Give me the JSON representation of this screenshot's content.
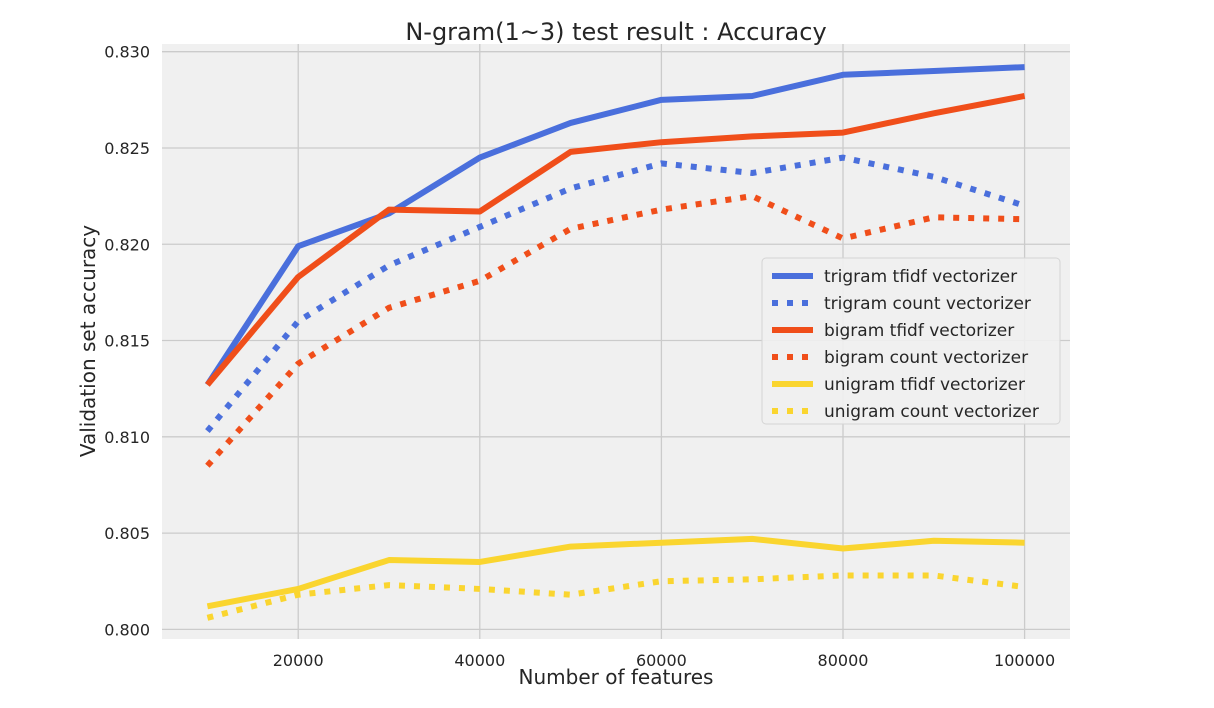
{
  "chart_data": {
    "type": "line",
    "title": "N-gram(1~3) test result : Accuracy",
    "xlabel": "Number of features",
    "ylabel": "Validation set accuracy",
    "x": [
      10000,
      20000,
      30000,
      40000,
      50000,
      60000,
      70000,
      80000,
      90000,
      100000
    ],
    "xlim": [
      5000,
      105000
    ],
    "ylim": [
      0.7995,
      0.8304
    ],
    "xticks": [
      20000,
      40000,
      60000,
      80000,
      100000
    ],
    "yticks": [
      0.8,
      0.805,
      0.81,
      0.815,
      0.82,
      0.825,
      0.83
    ],
    "xtick_labels": [
      "20000",
      "40000",
      "60000",
      "80000",
      "100000"
    ],
    "ytick_labels": [
      "0.800",
      "0.805",
      "0.810",
      "0.815",
      "0.820",
      "0.825",
      "0.830"
    ],
    "grid": true,
    "legend_position": "center-right",
    "series": [
      {
        "name": "trigram tfidf vectorizer",
        "color": "#4a6fdc",
        "linestyle": "solid",
        "values": [
          0.8127,
          0.8199,
          0.8216,
          0.8245,
          0.8263,
          0.8275,
          0.8277,
          0.8288,
          0.829,
          0.8292
        ]
      },
      {
        "name": "trigram count vectorizer",
        "color": "#4a6fdc",
        "linestyle": "dotted",
        "values": [
          0.8103,
          0.816,
          0.8189,
          0.8209,
          0.8229,
          0.8242,
          0.8237,
          0.8245,
          0.8235,
          0.822
        ]
      },
      {
        "name": "bigram tfidf vectorizer",
        "color": "#f04e1a",
        "linestyle": "solid",
        "values": [
          0.8127,
          0.8183,
          0.8218,
          0.8217,
          0.8248,
          0.8253,
          0.8256,
          0.8258,
          0.8268,
          0.8277
        ]
      },
      {
        "name": "bigram count vectorizer",
        "color": "#f04e1a",
        "linestyle": "dotted",
        "values": [
          0.8085,
          0.8138,
          0.8167,
          0.8181,
          0.8208,
          0.8218,
          0.8225,
          0.8203,
          0.8214,
          0.8213
        ]
      },
      {
        "name": "unigram tfidf vectorizer",
        "color": "#fad52f",
        "linestyle": "solid",
        "values": [
          0.8012,
          0.8021,
          0.8036,
          0.8035,
          0.8043,
          0.8045,
          0.8047,
          0.8042,
          0.8046,
          0.8045
        ]
      },
      {
        "name": "unigram count vectorizer",
        "color": "#fad52f",
        "linestyle": "dotted",
        "values": [
          0.8006,
          0.8018,
          0.8023,
          0.8021,
          0.8018,
          0.8025,
          0.8026,
          0.8028,
          0.8028,
          0.8022
        ]
      }
    ]
  }
}
